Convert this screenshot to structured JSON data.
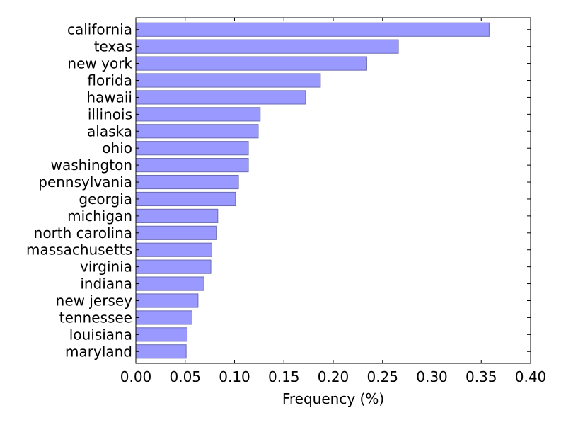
{
  "chart_data": {
    "type": "bar",
    "orientation": "horizontal",
    "title": "",
    "xlabel": "Frequency (%)",
    "ylabel": "",
    "xlim": [
      0.0,
      0.4
    ],
    "x_ticks": [
      "0.00",
      "0.05",
      "0.10",
      "0.15",
      "0.20",
      "0.25",
      "0.30",
      "0.35",
      "0.40"
    ],
    "grid": false,
    "bar_color": "#9999ff",
    "bar_edge_color": "#6b6bb3",
    "categories": [
      "california",
      "texas",
      "new york",
      "florida",
      "hawaii",
      "illinois",
      "alaska",
      "ohio",
      "washington",
      "pennsylvania",
      "georgia",
      "michigan",
      "north carolina",
      "massachusetts",
      "virginia",
      "indiana",
      "new jersey",
      "tennessee",
      "louisiana",
      "maryland"
    ],
    "values": [
      0.358,
      0.266,
      0.234,
      0.187,
      0.172,
      0.126,
      0.124,
      0.114,
      0.114,
      0.104,
      0.101,
      0.083,
      0.082,
      0.077,
      0.076,
      0.069,
      0.063,
      0.057,
      0.052,
      0.051
    ]
  }
}
